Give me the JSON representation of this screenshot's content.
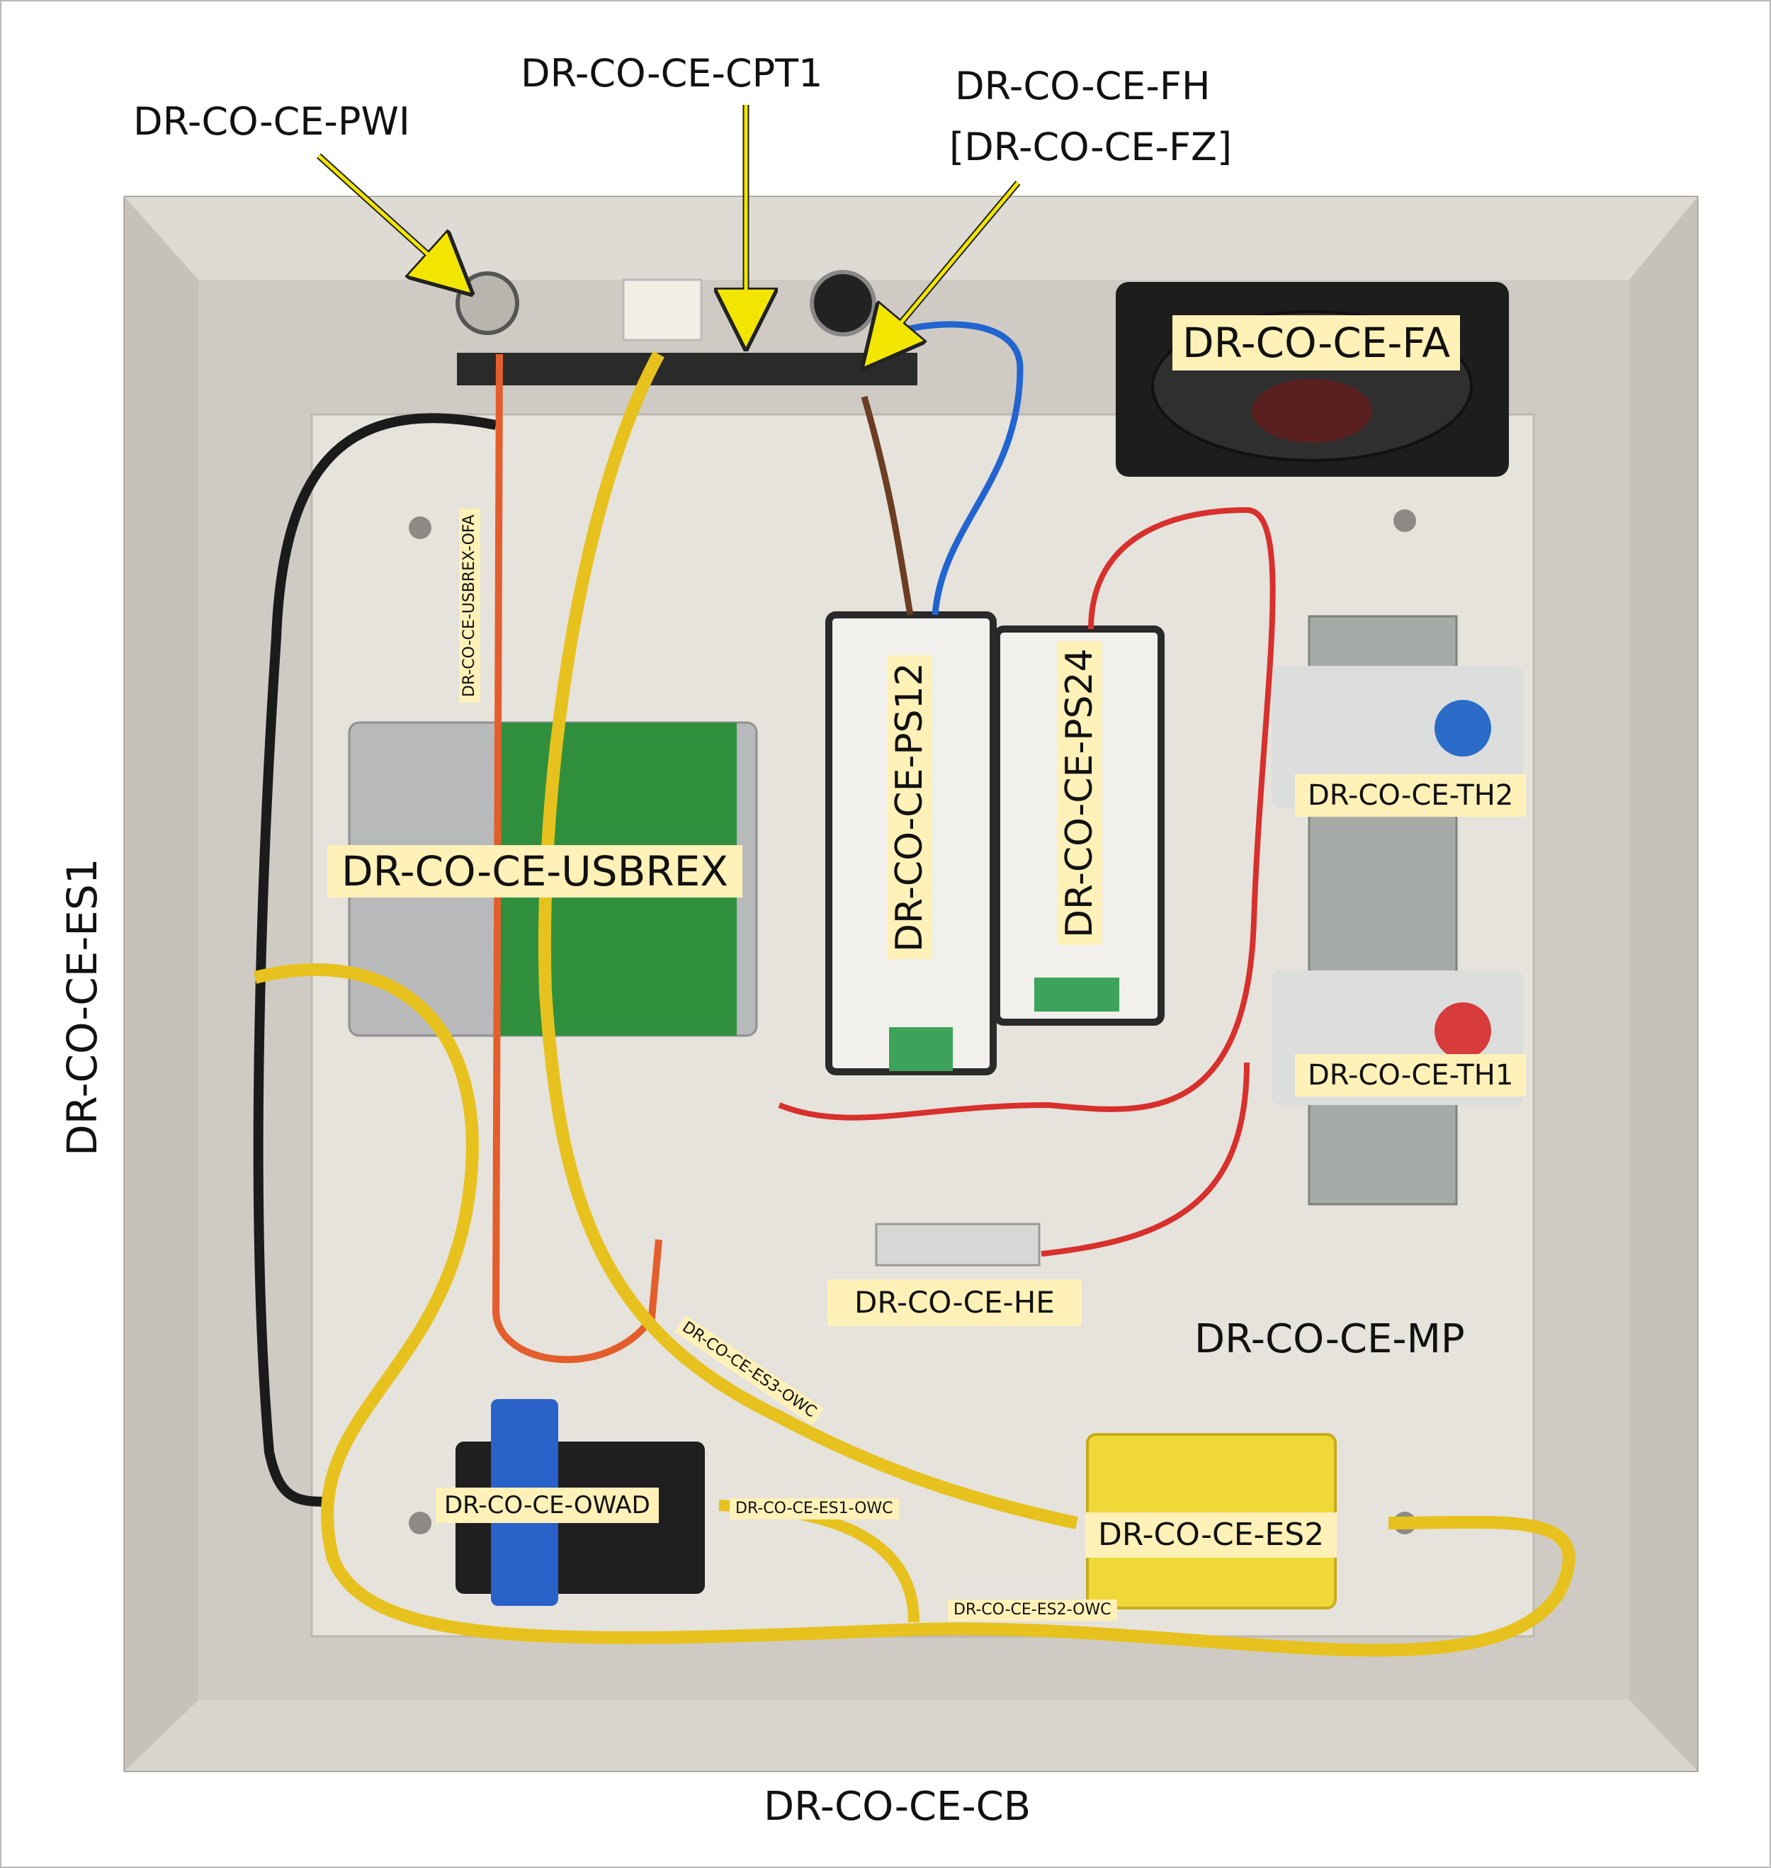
{
  "labels": {
    "pwi": "DR-CO-CE-PWI",
    "cpt1": "DR-CO-CE-CPT1",
    "fh": "DR-CO-CE-FH",
    "fz": "[DR-CO-CE-FZ]",
    "fa": "DR-CO-CE-FA",
    "usbrex_ofa": "DR-CO-CE-USBREX-OFA",
    "usbrex": "DR-CO-CE-USBREX",
    "ps12": "DR-CO-CE-PS12",
    "ps24": "DR-CO-CE-PS24",
    "th2": "DR-CO-CE-TH2",
    "th1": "DR-CO-CE-TH1",
    "es1": "DR-CO-CE-ES1",
    "he": "DR-CO-CE-HE",
    "mp": "DR-CO-CE-MP",
    "es3_owc": "DR-CO-CE-ES3-OWC",
    "owad": "DR-CO-CE-OWAD",
    "es1_owc": "DR-CO-CE-ES1-OWC",
    "es2": "DR-CO-CE-ES2",
    "es2_owc": "DR-CO-CE-ES2-OWC",
    "cb": "DR-CO-CE-CB"
  },
  "colors": {
    "label_fill": "#fff1b8",
    "arrow": "#f2e600",
    "enclosure": "#cfcbc4",
    "panel": "#e6e2dc",
    "yellow_cable": "#e7c21e"
  }
}
